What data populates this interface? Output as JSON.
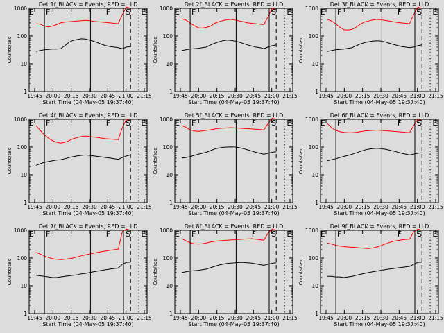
{
  "chart_data": [
    {
      "type": "line",
      "title": "Det 1f_BLACK = Events, RED = LLD",
      "xlabel": "Start Time (04-May-05 19:37:40)",
      "ylabel": "Counts/sec",
      "xticks": [
        "19:45",
        "20:00",
        "20:15",
        "20:30",
        "20:45",
        "21:00",
        "21:15"
      ],
      "yticks": [
        "1",
        "10",
        "100",
        "1000"
      ],
      "ylim": [
        1,
        1000
      ],
      "yscale": "log",
      "markers": [
        "E",
        "F",
        "F",
        "S",
        "E"
      ],
      "series": [
        {
          "color": "#ff0000",
          "values": [
            280,
            270,
            230,
            215,
            230,
            260,
            300,
            320,
            330,
            340,
            350,
            360,
            370,
            360,
            340,
            330,
            320,
            310,
            300,
            290,
            280,
            600,
            1100,
            1000
          ]
        },
        {
          "color": "#000000",
          "values": [
            28,
            30,
            32,
            33,
            34,
            34,
            35,
            45,
            60,
            70,
            75,
            80,
            78,
            72,
            65,
            58,
            50,
            45,
            42,
            40,
            38,
            35,
            40,
            42
          ]
        }
      ]
    },
    {
      "type": "line",
      "title": "Det 2f_BLACK = Events, RED = LLD",
      "xlabel": "Start Time (04-May-05 19:37:40)",
      "ylabel": "Counts/sec",
      "xticks": [
        "19:45",
        "20:00",
        "20:15",
        "20:30",
        "20:45",
        "21:00",
        "21:15"
      ],
      "yticks": [
        "1",
        "10",
        "100",
        "1000"
      ],
      "ylim": [
        1,
        1000
      ],
      "yscale": "log",
      "markers": [
        "E",
        "F",
        "F",
        "S",
        "E"
      ],
      "series": [
        {
          "color": "#ff0000",
          "values": [
            420,
            380,
            300,
            240,
            200,
            195,
            205,
            230,
            290,
            330,
            360,
            390,
            400,
            380,
            350,
            330,
            300,
            290,
            280,
            270,
            260,
            500,
            1000,
            900
          ]
        },
        {
          "color": "#000000",
          "values": [
            30,
            32,
            34,
            35,
            36,
            38,
            40,
            48,
            55,
            62,
            68,
            72,
            70,
            66,
            60,
            54,
            48,
            44,
            40,
            38,
            35,
            40,
            45,
            48
          ]
        }
      ]
    },
    {
      "type": "line",
      "title": "Det 3f_BLACK = Events, RED = LLD",
      "xlabel": "Start Time (04-May-05 19:37:40)",
      "ylabel": "Counts/sec",
      "xticks": [
        "19:45",
        "20:00",
        "20:15",
        "20:30",
        "20:45",
        "21:00",
        "21:15"
      ],
      "yticks": [
        "1",
        "10",
        "100",
        "1000"
      ],
      "ylim": [
        1,
        1000
      ],
      "yscale": "log",
      "markers": [
        "E",
        "F",
        "F",
        "S",
        "E"
      ],
      "series": [
        {
          "color": "#ff0000",
          "values": [
            400,
            350,
            280,
            210,
            170,
            165,
            175,
            210,
            270,
            320,
            350,
            380,
            400,
            390,
            370,
            350,
            330,
            310,
            300,
            290,
            280,
            600,
            1100,
            1000
          ]
        },
        {
          "color": "#000000",
          "values": [
            28,
            30,
            32,
            33,
            34,
            36,
            38,
            45,
            52,
            58,
            62,
            66,
            68,
            66,
            62,
            56,
            50,
            46,
            42,
            40,
            38,
            40,
            45,
            48
          ]
        }
      ]
    },
    {
      "type": "line",
      "title": "Det 4f_BLACK = Events, RED = LLD",
      "xlabel": "Start Time (04-May-05 19:37:40)",
      "ylabel": "Counts/sec",
      "xticks": [
        "19:45",
        "20:00",
        "20:15",
        "20:30",
        "20:45",
        "21:00",
        "21:15"
      ],
      "yticks": [
        "1",
        "10",
        "100",
        "1000"
      ],
      "ylim": [
        1,
        1000
      ],
      "yscale": "log",
      "markers": [
        "E",
        "F",
        "F",
        "S",
        "E"
      ],
      "series": [
        {
          "color": "#ff0000",
          "values": [
            600,
            400,
            280,
            210,
            170,
            150,
            140,
            150,
            170,
            200,
            220,
            240,
            250,
            240,
            230,
            220,
            210,
            200,
            195,
            190,
            185,
            500,
            1000,
            900
          ]
        },
        {
          "color": "#000000",
          "values": [
            22,
            25,
            28,
            30,
            32,
            34,
            35,
            38,
            42,
            45,
            48,
            50,
            52,
            50,
            48,
            46,
            44,
            42,
            40,
            38,
            36,
            42,
            48,
            52
          ]
        }
      ]
    },
    {
      "type": "line",
      "title": "Det 5f_BLACK = Events, RED = LLD",
      "xlabel": "Start Time (04-May-05 19:37:40)",
      "ylabel": "Counts/sec",
      "xticks": [
        "19:45",
        "20:00",
        "20:15",
        "20:30",
        "20:45",
        "21:00",
        "21:15"
      ],
      "yticks": [
        "1",
        "10",
        "100",
        "1000"
      ],
      "ylim": [
        1,
        1000
      ],
      "yscale": "log",
      "markers": [
        "E",
        "F",
        "F",
        "S",
        "E"
      ],
      "series": [
        {
          "color": "#ff0000",
          "values": [
            600,
            520,
            420,
            380,
            370,
            380,
            400,
            420,
            450,
            470,
            480,
            490,
            500,
            490,
            480,
            470,
            460,
            450,
            440,
            430,
            420,
            700,
            1100,
            1000
          ]
        },
        {
          "color": "#000000",
          "values": [
            40,
            42,
            45,
            50,
            55,
            60,
            65,
            75,
            85,
            92,
            98,
            100,
            102,
            100,
            95,
            88,
            80,
            72,
            65,
            60,
            55,
            60,
            65,
            68
          ]
        }
      ]
    },
    {
      "type": "line",
      "title": "Det 6f_BLACK = Events, RED = LLD",
      "xlabel": "Start Time (04-May-05 19:37:40)",
      "ylabel": "Counts/sec",
      "xticks": [
        "19:45",
        "20:00",
        "20:15",
        "20:30",
        "20:45",
        "21:00",
        "21:15"
      ],
      "yticks": [
        "1",
        "10",
        "100",
        "1000"
      ],
      "ylim": [
        1,
        1000
      ],
      "yscale": "log",
      "markers": [
        "E",
        "F",
        "F",
        "S",
        "E"
      ],
      "series": [
        {
          "color": "#ff0000",
          "values": [
            700,
            500,
            400,
            360,
            340,
            330,
            330,
            340,
            360,
            380,
            390,
            400,
            410,
            400,
            390,
            380,
            370,
            360,
            350,
            340,
            330,
            600,
            1000,
            900
          ]
        },
        {
          "color": "#000000",
          "values": [
            32,
            35,
            38,
            42,
            46,
            50,
            55,
            62,
            70,
            78,
            84,
            88,
            90,
            88,
            84,
            78,
            72,
            66,
            60,
            56,
            52,
            56,
            60,
            62
          ]
        }
      ]
    },
    {
      "type": "line",
      "title": "Det 7f_BLACK = Events, RED = LLD",
      "xlabel": "Start Time (04-May-05 19:37:40)",
      "ylabel": "Counts/sec",
      "xticks": [
        "19:45",
        "20:00",
        "20:15",
        "20:30",
        "20:45",
        "21:00",
        "21:15"
      ],
      "yticks": [
        "1",
        "10",
        "100",
        "1000"
      ],
      "ylim": [
        1,
        1000
      ],
      "yscale": "log",
      "markers": [
        "E",
        "F",
        "F",
        "S",
        "E"
      ],
      "series": [
        {
          "color": "#ff0000",
          "values": [
            160,
            140,
            120,
            105,
            95,
            90,
            88,
            90,
            95,
            100,
            110,
            120,
            130,
            140,
            150,
            160,
            170,
            180,
            190,
            200,
            210,
            900,
            1100,
            1000
          ]
        },
        {
          "color": "#000000",
          "values": [
            24,
            23,
            22,
            21,
            20,
            20,
            21,
            22,
            23,
            24,
            25,
            27,
            28,
            30,
            32,
            34,
            36,
            38,
            40,
            42,
            44,
            60,
            70,
            72
          ]
        }
      ]
    },
    {
      "type": "line",
      "title": "Det 8f_BLACK = Events, RED = LLD",
      "xlabel": "Start Time (04-May-05 19:37:40)",
      "ylabel": "Counts/sec",
      "xticks": [
        "19:45",
        "20:00",
        "20:15",
        "20:30",
        "20:45",
        "21:00",
        "21:15"
      ],
      "yticks": [
        "1",
        "10",
        "100",
        "1000"
      ],
      "ylim": [
        1,
        1000
      ],
      "yscale": "log",
      "markers": [
        "E",
        "F",
        "F",
        "S",
        "E"
      ],
      "series": [
        {
          "color": "#ff0000",
          "values": [
            500,
            420,
            360,
            330,
            320,
            330,
            350,
            380,
            400,
            420,
            430,
            440,
            450,
            460,
            470,
            480,
            490,
            500,
            480,
            460,
            440,
            800,
            1100,
            1000
          ]
        },
        {
          "color": "#000000",
          "values": [
            30,
            32,
            34,
            35,
            36,
            38,
            40,
            45,
            50,
            56,
            60,
            64,
            66,
            68,
            70,
            70,
            68,
            66,
            62,
            58,
            55,
            60,
            65,
            68
          ]
        }
      ]
    },
    {
      "type": "line",
      "title": "Det 9f_BLACK = Events, RED = LLD",
      "xlabel": "Start Time (04-May-05 19:37:40)",
      "ylabel": "Counts/sec",
      "xticks": [
        "19:45",
        "20:00",
        "20:15",
        "20:30",
        "20:45",
        "21:00",
        "21:15"
      ],
      "yticks": [
        "1",
        "10",
        "100",
        "1000"
      ],
      "ylim": [
        1,
        1000
      ],
      "yscale": "log",
      "markers": [
        "E",
        "F",
        "F",
        "S",
        "E"
      ],
      "series": [
        {
          "color": "#ff0000",
          "values": [
            350,
            320,
            290,
            270,
            260,
            250,
            245,
            240,
            230,
            225,
            220,
            230,
            250,
            280,
            320,
            360,
            400,
            430,
            450,
            470,
            480,
            900,
            1100,
            1000
          ]
        },
        {
          "color": "#000000",
          "values": [
            22,
            22,
            21,
            21,
            20,
            21,
            22,
            24,
            26,
            28,
            30,
            32,
            34,
            36,
            38,
            40,
            42,
            44,
            46,
            48,
            50,
            60,
            70,
            72
          ]
        }
      ]
    }
  ]
}
